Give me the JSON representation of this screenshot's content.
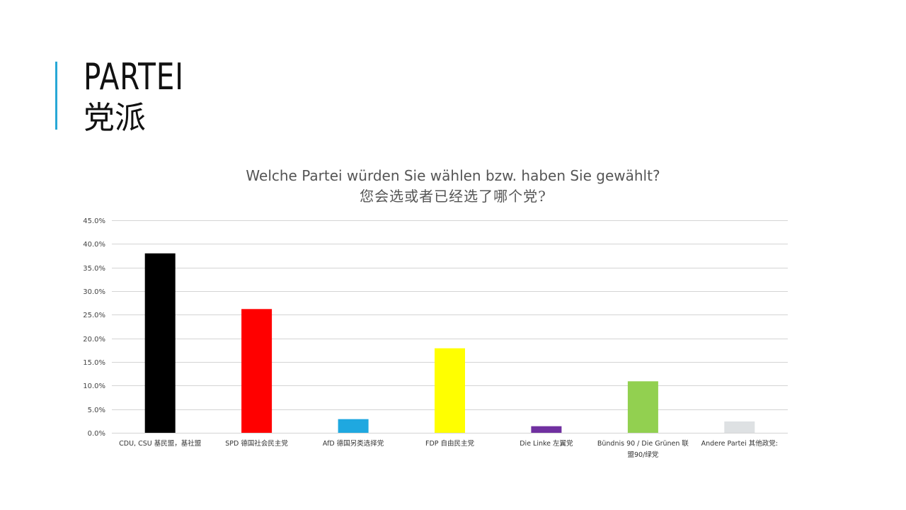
{
  "slide": {
    "title_de": "PARTEI",
    "title_zh": "党派",
    "accent_color": "#28a8d6"
  },
  "chart_data": {
    "type": "bar",
    "title": "Welche Partei würden Sie wählen bzw. haben Sie gewählt?",
    "subtitle": "您会选或者已经选了哪个党?",
    "categories": [
      "CDU, CSU 基民盟，基社盟",
      "SPD 德国社会民主党",
      "AfD 德国另类选择党",
      "FDP 自由民主党",
      "Die Linke 左翼党",
      "Bündnis 90 / Die Grünen 联盟90/绿党",
      "Andere Partei 其他政党:"
    ],
    "values": [
      38.0,
      26.2,
      2.9,
      17.9,
      1.4,
      10.9,
      2.4
    ],
    "colors": [
      "#000000",
      "#ff0000",
      "#1fa8e0",
      "#ffff00",
      "#7030a0",
      "#92d050",
      "#dee1e3"
    ],
    "ylim": [
      0,
      45
    ],
    "yticks": [
      0,
      5,
      10,
      15,
      20,
      25,
      30,
      35,
      40,
      45
    ],
    "ytick_labels": [
      "0.0%",
      "5.0%",
      "10.0%",
      "15.0%",
      "20.0%",
      "25.0%",
      "30.0%",
      "35.0%",
      "40.0%",
      "45.0%"
    ],
    "grid": true,
    "xlabel": "",
    "ylabel": ""
  }
}
